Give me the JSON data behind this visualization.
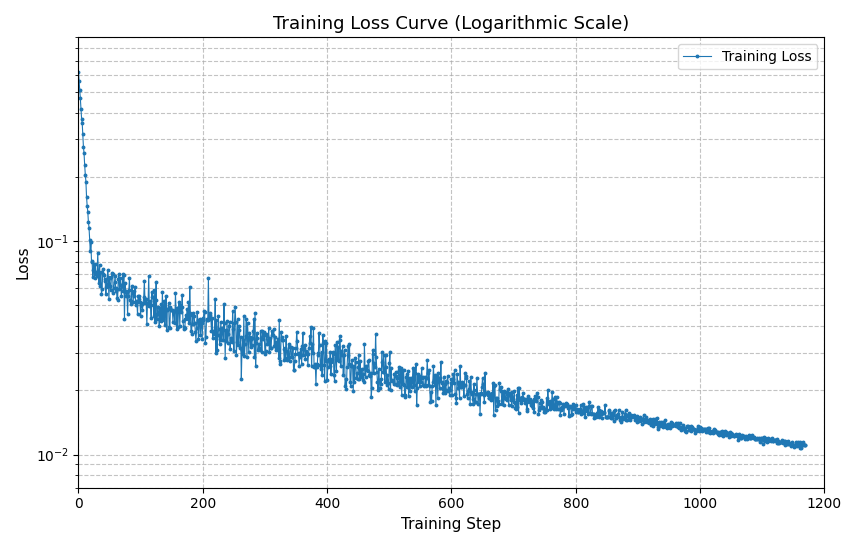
{
  "title": "Training Loss Curve (Logarithmic Scale)",
  "xlabel": "Training Step",
  "ylabel": "Loss",
  "line_color": "#1f77b4",
  "marker": "o",
  "marker_size": 1.8,
  "linewidth": 0.8,
  "xlim": [
    0,
    1200
  ],
  "ylim_log": [
    0.007,
    0.9
  ],
  "yscale": "log",
  "grid": true,
  "grid_linestyle": "--",
  "grid_color": "#aaaaaa",
  "legend_label": "Training Loss",
  "n_steps": 1170,
  "initial_loss": 0.62,
  "final_loss": 0.011,
  "seed": 42
}
